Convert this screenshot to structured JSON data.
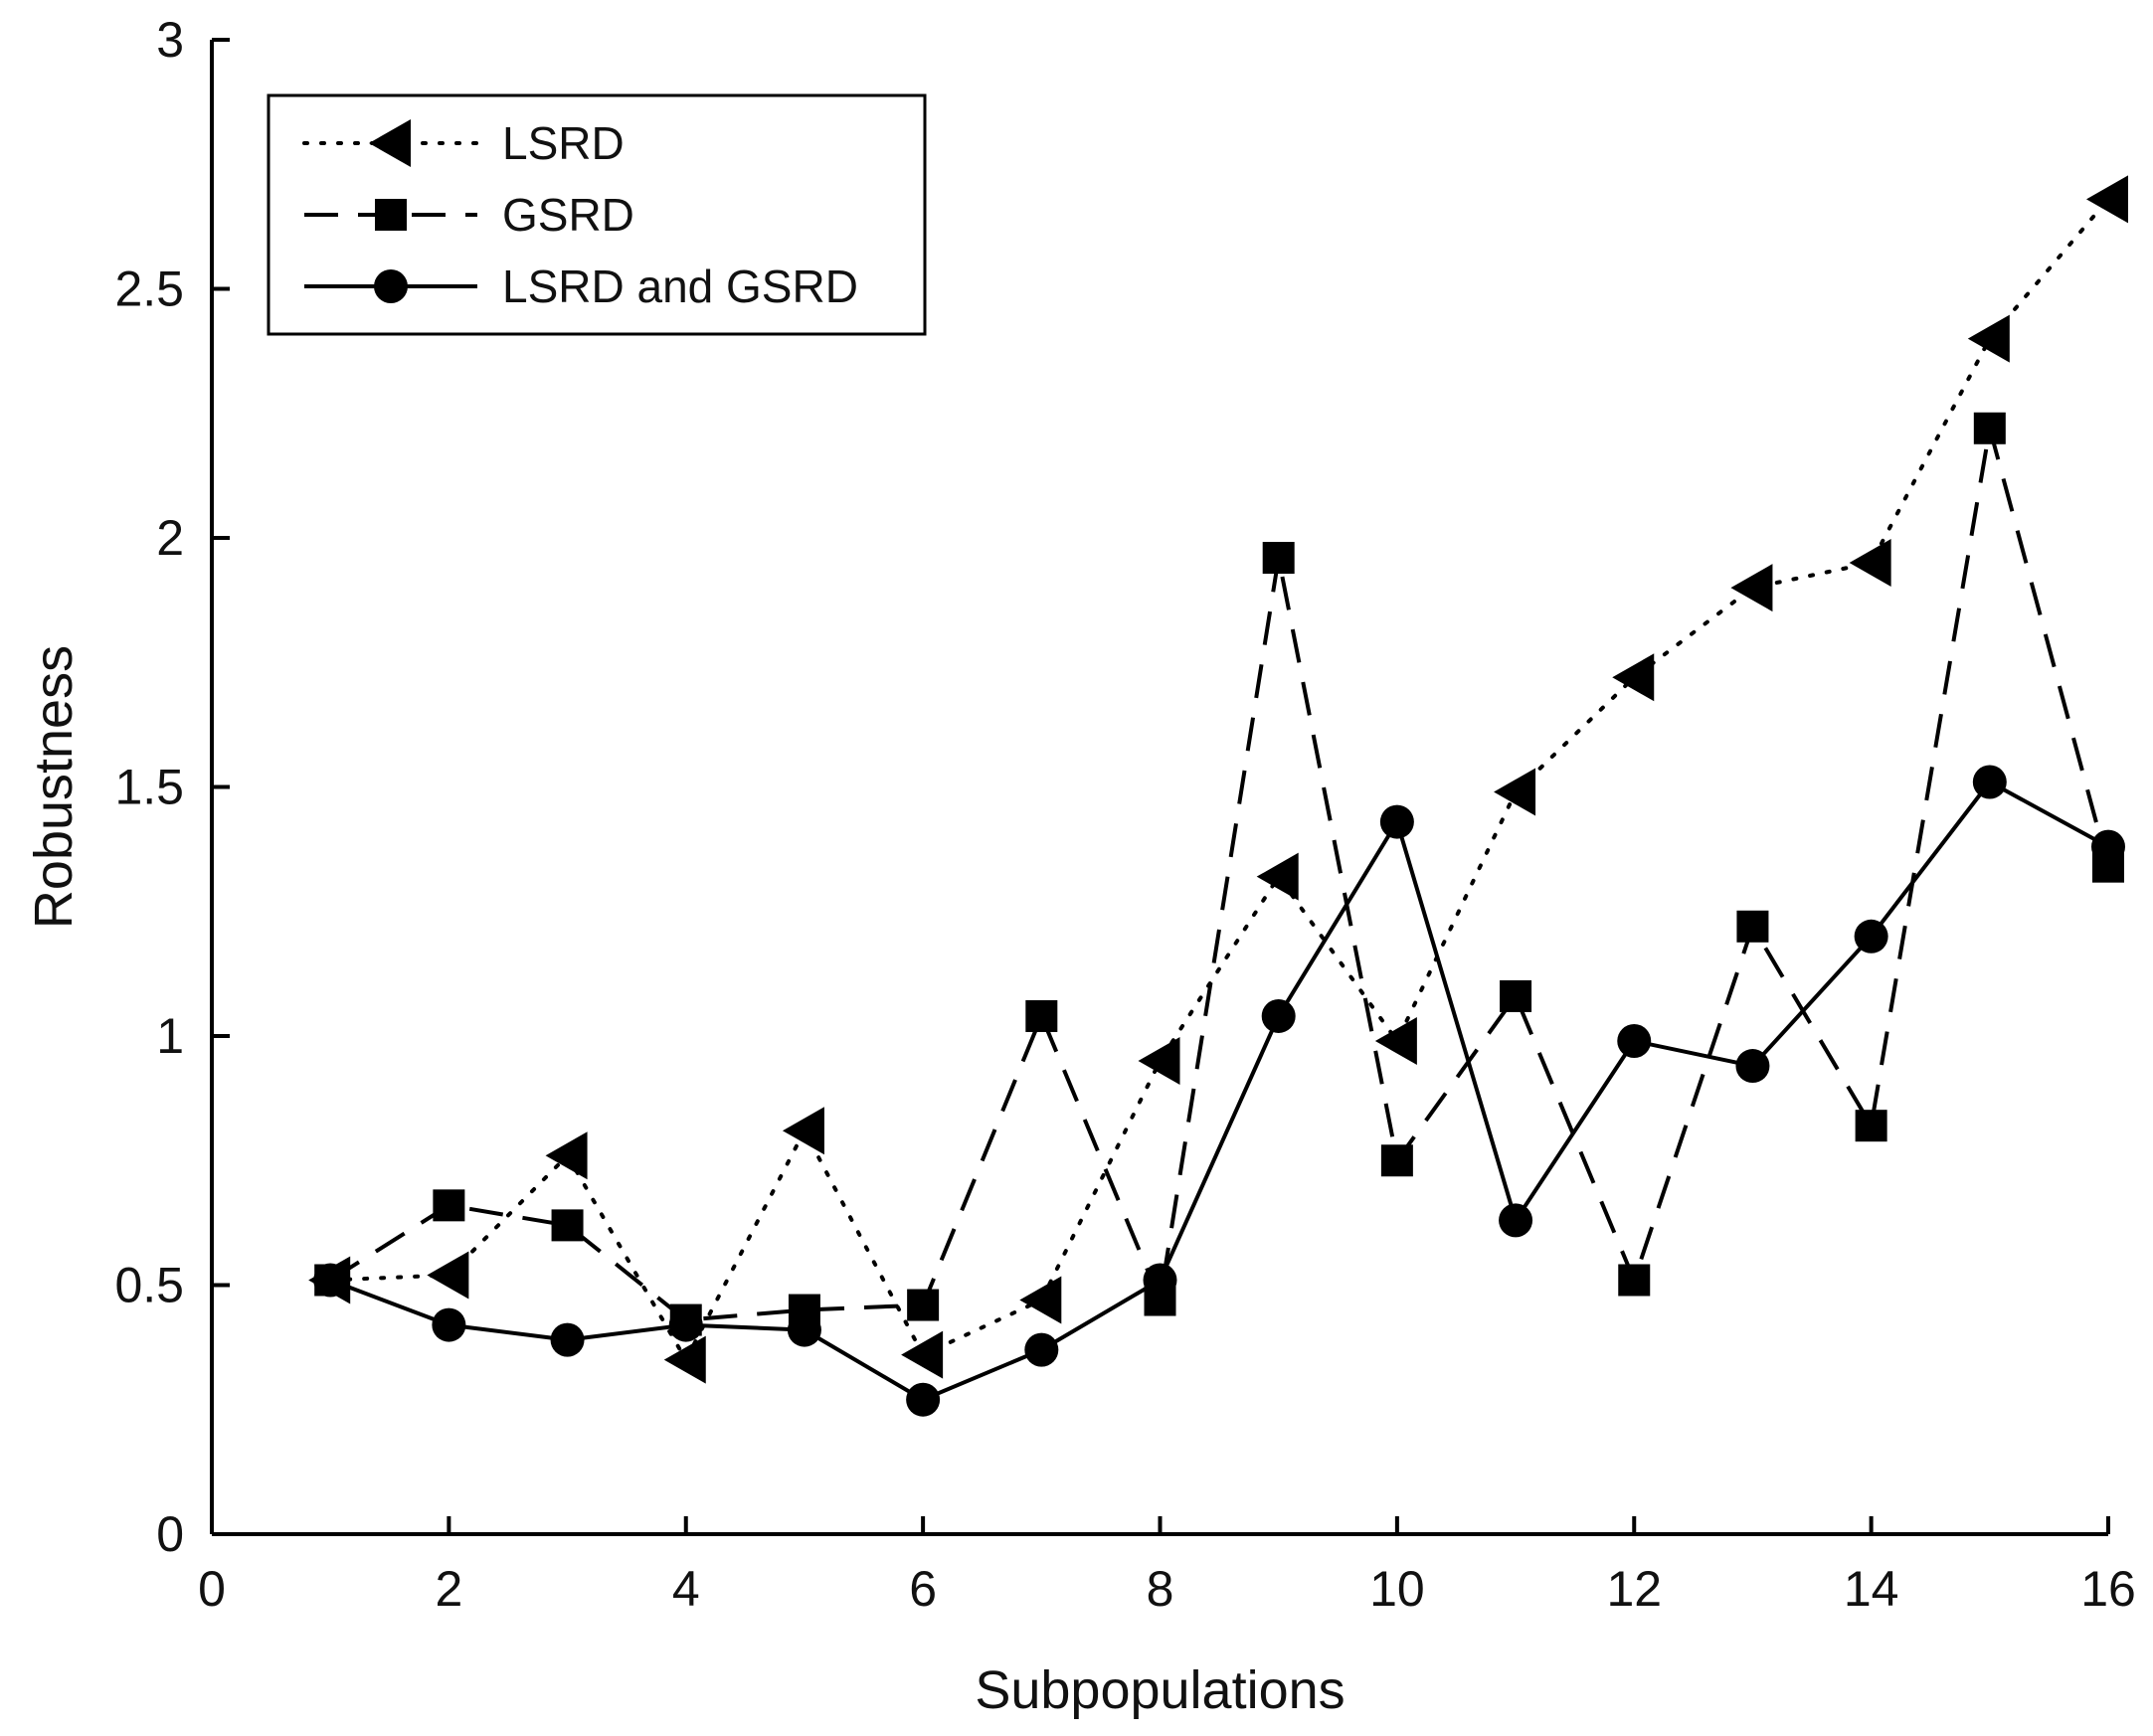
{
  "chart_data": {
    "type": "line",
    "title": "",
    "xlabel": "Subpopulations",
    "ylabel": "Robustness",
    "xlim": [
      0,
      16
    ],
    "ylim": [
      0,
      3
    ],
    "xticks": [
      0,
      2,
      4,
      6,
      8,
      10,
      12,
      14,
      16
    ],
    "yticks": [
      0,
      0.5,
      1,
      1.5,
      2,
      2.5,
      3
    ],
    "xtick_labels": [
      "0",
      "2",
      "4",
      "6",
      "8",
      "10",
      "12",
      "14",
      "16"
    ],
    "ytick_labels": [
      "0",
      "0.5",
      "1",
      "1.5",
      "2",
      "2.5",
      "3"
    ],
    "grid": false,
    "legend_position": "top-left",
    "x": [
      1,
      2,
      3,
      4,
      5,
      6,
      7,
      8,
      9,
      10,
      11,
      12,
      13,
      14,
      15,
      16
    ],
    "series": [
      {
        "name": "LSRD",
        "line_style": "dotted",
        "marker": "triangle-left",
        "color": "#000000",
        "values": [
          0.51,
          0.52,
          0.76,
          0.35,
          0.81,
          0.36,
          0.47,
          0.95,
          1.32,
          0.99,
          1.49,
          1.72,
          1.9,
          1.95,
          2.4,
          2.68
        ]
      },
      {
        "name": "GSRD",
        "line_style": "dashed",
        "marker": "square",
        "color": "#000000",
        "values": [
          0.51,
          0.66,
          0.62,
          0.43,
          0.45,
          0.46,
          1.04,
          0.47,
          1.96,
          0.75,
          1.08,
          0.51,
          1.22,
          0.82,
          2.22,
          1.34
        ]
      },
      {
        "name": "LSRD and GSRD",
        "line_style": "solid",
        "marker": "circle",
        "color": "#000000",
        "values": [
          0.51,
          0.42,
          0.39,
          0.42,
          0.41,
          0.27,
          0.37,
          0.51,
          1.04,
          1.43,
          0.63,
          0.99,
          0.94,
          1.2,
          1.51,
          1.38
        ]
      }
    ]
  }
}
